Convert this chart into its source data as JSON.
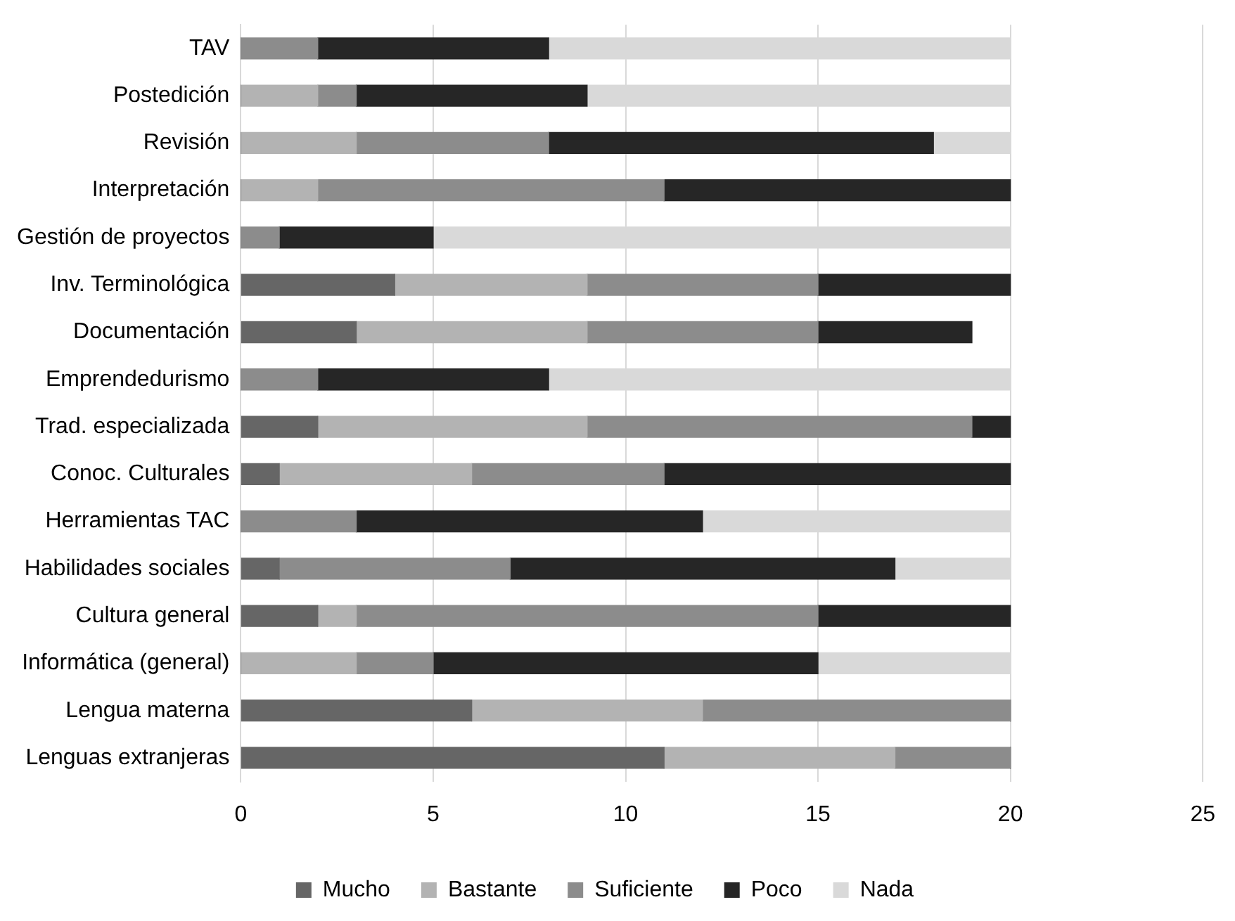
{
  "chart_data": {
    "type": "bar",
    "orientation": "horizontal",
    "stacked": true,
    "categories": [
      "TAV",
      "Postedición",
      "Revisión",
      "Interpretación",
      "Gestión de proyectos",
      "Inv. Terminológica",
      "Documentación",
      "Emprendedurismo",
      "Trad. especializada",
      "Conoc. Culturales",
      "Herramientas TAC",
      "Habilidades sociales",
      "Cultura general",
      "Informática (general)",
      "Lengua materna",
      "Lenguas extranjeras"
    ],
    "series": [
      {
        "name": "Mucho",
        "color": "#666666",
        "values": [
          0,
          0,
          0,
          0,
          0,
          4,
          3,
          0,
          2,
          1,
          0,
          1,
          2,
          0,
          6,
          11
        ]
      },
      {
        "name": "Bastante",
        "color": "#b3b3b3",
        "values": [
          0,
          2,
          3,
          2,
          0,
          5,
          6,
          0,
          7,
          5,
          0,
          0,
          1,
          3,
          6,
          6
        ]
      },
      {
        "name": "Suficiente",
        "color": "#8c8c8c",
        "values": [
          2,
          1,
          5,
          9,
          1,
          6,
          6,
          2,
          10,
          5,
          3,
          6,
          12,
          2,
          8,
          3
        ]
      },
      {
        "name": "Poco",
        "color": "#262626",
        "values": [
          6,
          6,
          10,
          9,
          4,
          5,
          4,
          6,
          1,
          9,
          9,
          10,
          5,
          10,
          0,
          0
        ]
      },
      {
        "name": "Nada",
        "color": "#d9d9d9",
        "values": [
          12,
          11,
          2,
          0,
          15,
          0,
          0,
          12,
          0,
          0,
          8,
          3,
          0,
          5,
          0,
          0
        ]
      }
    ],
    "xlim": [
      0,
      25
    ],
    "xticks": [
      0,
      5,
      10,
      15,
      20,
      25
    ],
    "grid": "x",
    "legend": "bottom"
  }
}
